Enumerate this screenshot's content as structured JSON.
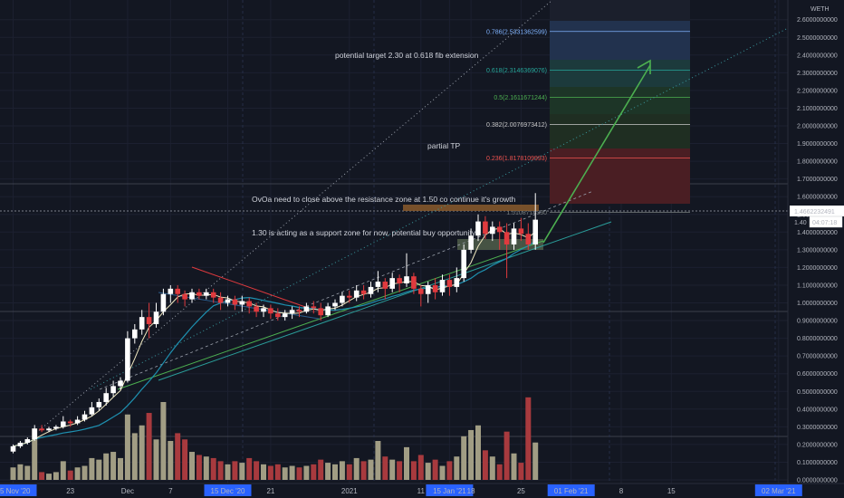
{
  "symbol_label": "WETH",
  "price_badge": "1.4662232491",
  "price_badge_partial": "1.40",
  "countdown_badge": "04:07:18",
  "colors": {
    "background": "#131722",
    "bull_candle": "#ffffff",
    "bear_candle": "#e03a3e",
    "bull_volume": "#a19d84",
    "bear_volume": "#a83a3e",
    "ma_fast": "#f0e8c0",
    "ma_slow": "#1e90b0",
    "trend_green": "#4caf50",
    "trend_teal": "#2a9d9a",
    "resistance_line": "#e03a3e",
    "support_zone": "#5d6e52",
    "resistance_zone": "#8a5a2c",
    "target_arrow": "#4caf50",
    "fib_0786": "#7fb3ff",
    "fib_0618": "#26a69a",
    "fib_05": "#4caf50",
    "fib_0382": "#c8c8c8",
    "fib_0236": "#ef5350"
  },
  "annotations": {
    "target": "potential target 2.30 at 0.618 fib extension",
    "partial": "partial TP",
    "resistance": "OvOa need to close above the resistance zone at 1.50 co continue it's growth",
    "support": "1.30 is acting as a support zone for now, potential buy opportunity"
  },
  "fib_levels": [
    {
      "label": "0.786(2.5331362599)",
      "value": 2.5331362599,
      "color": "#7fb3ff"
    },
    {
      "label": "0.618(2.3146369076)",
      "value": 2.3146369076,
      "color": "#26a69a"
    },
    {
      "label": "0.5(2.1611671244)",
      "value": 2.1611671244,
      "color": "#4caf50"
    },
    {
      "label": "0.382(2.0076973412)",
      "value": 2.0076973412,
      "color": "#c8c8c8"
    },
    {
      "label": "0.236(1.8178109993)",
      "value": 1.8178109993,
      "color": "#ef5350"
    },
    {
      "label": "1.5108714330",
      "value": 1.510871433,
      "color": "#7a8080"
    }
  ],
  "chart_data": {
    "type": "candlestick",
    "title": "",
    "ylim": [
      0,
      2.6
    ],
    "log_scale": false,
    "grid": true,
    "y_ticks": [
      "0.0000000000",
      "0.1000000000",
      "0.2000000000",
      "0.3000000000",
      "0.4000000000",
      "0.5000000000",
      "0.6000000000",
      "0.7000000000",
      "0.8000000000",
      "0.9000000000",
      "1.0000000000",
      "1.1000000000",
      "1.2000000000",
      "1.3000000000",
      "1.4000000000",
      "1.5000000000",
      "1.6000000000",
      "1.7000000000",
      "1.8000000000",
      "1.9000000000",
      "2.0000000000",
      "2.1000000000",
      "2.2000000000",
      "2.3000000000",
      "2.4000000000",
      "2.5000000000",
      "2.6000000000"
    ],
    "x_ticks": [
      {
        "label": "15 Nov '20",
        "day": 0,
        "boxed": true
      },
      {
        "label": "23",
        "day": 8,
        "boxed": false
      },
      {
        "label": "Dec",
        "day": 16,
        "boxed": false
      },
      {
        "label": "7",
        "day": 22,
        "boxed": false
      },
      {
        "label": "15 Dec '20",
        "day": 30,
        "boxed": true
      },
      {
        "label": "21",
        "day": 36,
        "boxed": false
      },
      {
        "label": "2021",
        "day": 47,
        "boxed": false
      },
      {
        "label": "11",
        "day": 57,
        "boxed": false
      },
      {
        "label": "15 Jan '21",
        "day": 61,
        "boxed": true
      },
      {
        "label": "18",
        "day": 64,
        "boxed": false
      },
      {
        "label": "25",
        "day": 71,
        "boxed": false
      },
      {
        "label": "01 Feb '21",
        "day": 78,
        "boxed": true
      },
      {
        "label": "8",
        "day": 85,
        "boxed": false
      },
      {
        "label": "15",
        "day": 92,
        "boxed": false
      },
      {
        "label": "02 Mar '21",
        "day": 107,
        "boxed": true
      }
    ],
    "candles": [
      [
        0.16,
        0.19,
        0.15,
        0.2,
        0.08
      ],
      [
        0.19,
        0.21,
        0.18,
        0.22,
        0.1
      ],
      [
        0.21,
        0.23,
        0.2,
        0.24,
        0.09
      ],
      [
        0.23,
        0.29,
        0.22,
        0.31,
        0.33
      ],
      [
        0.29,
        0.28,
        0.27,
        0.31,
        0.05
      ],
      [
        0.28,
        0.29,
        0.27,
        0.3,
        0.04
      ],
      [
        0.29,
        0.3,
        0.28,
        0.31,
        0.05
      ],
      [
        0.3,
        0.33,
        0.29,
        0.36,
        0.12
      ],
      [
        0.33,
        0.32,
        0.3,
        0.34,
        0.06
      ],
      [
        0.32,
        0.34,
        0.31,
        0.36,
        0.08
      ],
      [
        0.34,
        0.37,
        0.33,
        0.39,
        0.09
      ],
      [
        0.37,
        0.41,
        0.36,
        0.44,
        0.14
      ],
      [
        0.41,
        0.44,
        0.39,
        0.46,
        0.13
      ],
      [
        0.44,
        0.49,
        0.42,
        0.52,
        0.17
      ],
      [
        0.49,
        0.53,
        0.47,
        0.56,
        0.18
      ],
      [
        0.53,
        0.56,
        0.51,
        0.58,
        0.14
      ],
      [
        0.56,
        0.8,
        0.55,
        0.84,
        0.42
      ],
      [
        0.8,
        0.85,
        0.77,
        0.88,
        0.3
      ],
      [
        0.85,
        0.92,
        0.82,
        0.96,
        0.35
      ],
      [
        0.92,
        0.88,
        0.8,
        1.0,
        0.43
      ],
      [
        0.88,
        0.95,
        0.86,
        1.0,
        0.26
      ],
      [
        0.95,
        1.05,
        0.93,
        1.08,
        0.5
      ],
      [
        1.05,
        1.08,
        1.0,
        1.1,
        0.25
      ],
      [
        1.08,
        1.05,
        1.0,
        1.1,
        0.3
      ],
      [
        1.05,
        1.02,
        0.98,
        1.07,
        0.26
      ],
      [
        1.02,
        1.06,
        1.0,
        1.08,
        0.18
      ],
      [
        1.06,
        1.04,
        1.02,
        1.08,
        0.16
      ],
      [
        1.04,
        1.06,
        1.02,
        1.08,
        0.15
      ],
      [
        1.06,
        1.03,
        1.0,
        1.08,
        0.14
      ],
      [
        1.03,
        1.0,
        0.96,
        1.06,
        0.12
      ],
      [
        1.0,
        1.02,
        0.98,
        1.04,
        0.1
      ],
      [
        1.02,
        0.99,
        0.96,
        1.04,
        0.12
      ],
      [
        0.99,
        1.01,
        0.95,
        1.04,
        0.11
      ],
      [
        1.01,
        0.98,
        0.94,
        1.03,
        0.14
      ],
      [
        0.98,
        0.95,
        0.92,
        1.0,
        0.12
      ],
      [
        0.95,
        0.97,
        0.92,
        0.99,
        0.1
      ],
      [
        0.97,
        0.94,
        0.91,
        0.99,
        0.09
      ],
      [
        0.94,
        0.92,
        0.9,
        0.97,
        0.1
      ],
      [
        0.92,
        0.94,
        0.9,
        0.96,
        0.08
      ],
      [
        0.94,
        0.96,
        0.91,
        0.98,
        0.09
      ],
      [
        0.96,
        0.95,
        0.92,
        0.98,
        0.08
      ],
      [
        0.95,
        0.98,
        0.94,
        1.0,
        0.09
      ],
      [
        0.98,
        0.97,
        0.94,
        1.01,
        0.1
      ],
      [
        0.97,
        0.93,
        0.9,
        1.0,
        0.13
      ],
      [
        0.93,
        0.98,
        0.92,
        1.0,
        0.11
      ],
      [
        0.98,
        1.0,
        0.96,
        1.02,
        0.1
      ],
      [
        1.0,
        1.04,
        0.98,
        1.06,
        0.12
      ],
      [
        1.04,
        1.03,
        1.0,
        1.07,
        0.1
      ],
      [
        1.03,
        1.07,
        1.01,
        1.1,
        0.14
      ],
      [
        1.07,
        1.05,
        1.02,
        1.1,
        0.12
      ],
      [
        1.05,
        1.09,
        1.03,
        1.12,
        0.13
      ],
      [
        1.09,
        1.12,
        1.06,
        1.18,
        0.25
      ],
      [
        1.12,
        1.08,
        1.02,
        1.14,
        0.15
      ],
      [
        1.08,
        1.14,
        1.06,
        1.17,
        0.13
      ],
      [
        1.14,
        1.11,
        1.06,
        1.16,
        0.12
      ],
      [
        1.11,
        1.15,
        1.09,
        1.28,
        0.21
      ],
      [
        1.15,
        1.08,
        1.05,
        1.17,
        0.12
      ],
      [
        1.08,
        1.05,
        0.98,
        1.1,
        0.16
      ],
      [
        1.05,
        1.1,
        1.0,
        1.12,
        0.11
      ],
      [
        1.1,
        1.06,
        1.02,
        1.14,
        0.13
      ],
      [
        1.06,
        1.13,
        1.04,
        1.16,
        0.09
      ],
      [
        1.13,
        1.09,
        1.04,
        1.16,
        0.12
      ],
      [
        1.09,
        1.14,
        1.06,
        1.2,
        0.15
      ],
      [
        1.14,
        1.3,
        1.12,
        1.33,
        0.28
      ],
      [
        1.3,
        1.38,
        1.28,
        1.42,
        0.32
      ],
      [
        1.38,
        1.46,
        1.35,
        1.5,
        0.35
      ],
      [
        1.46,
        1.39,
        1.36,
        1.49,
        0.19
      ],
      [
        1.39,
        1.43,
        1.35,
        1.46,
        0.15
      ],
      [
        1.43,
        1.4,
        1.3,
        1.46,
        0.1
      ],
      [
        1.4,
        1.33,
        1.14,
        1.45,
        0.31
      ],
      [
        1.33,
        1.42,
        1.3,
        1.45,
        0.17
      ],
      [
        1.42,
        1.39,
        1.35,
        1.48,
        0.11
      ],
      [
        1.39,
        1.33,
        1.3,
        1.45,
        0.53
      ],
      [
        1.33,
        1.47,
        1.3,
        1.62,
        0.24
      ]
    ]
  }
}
